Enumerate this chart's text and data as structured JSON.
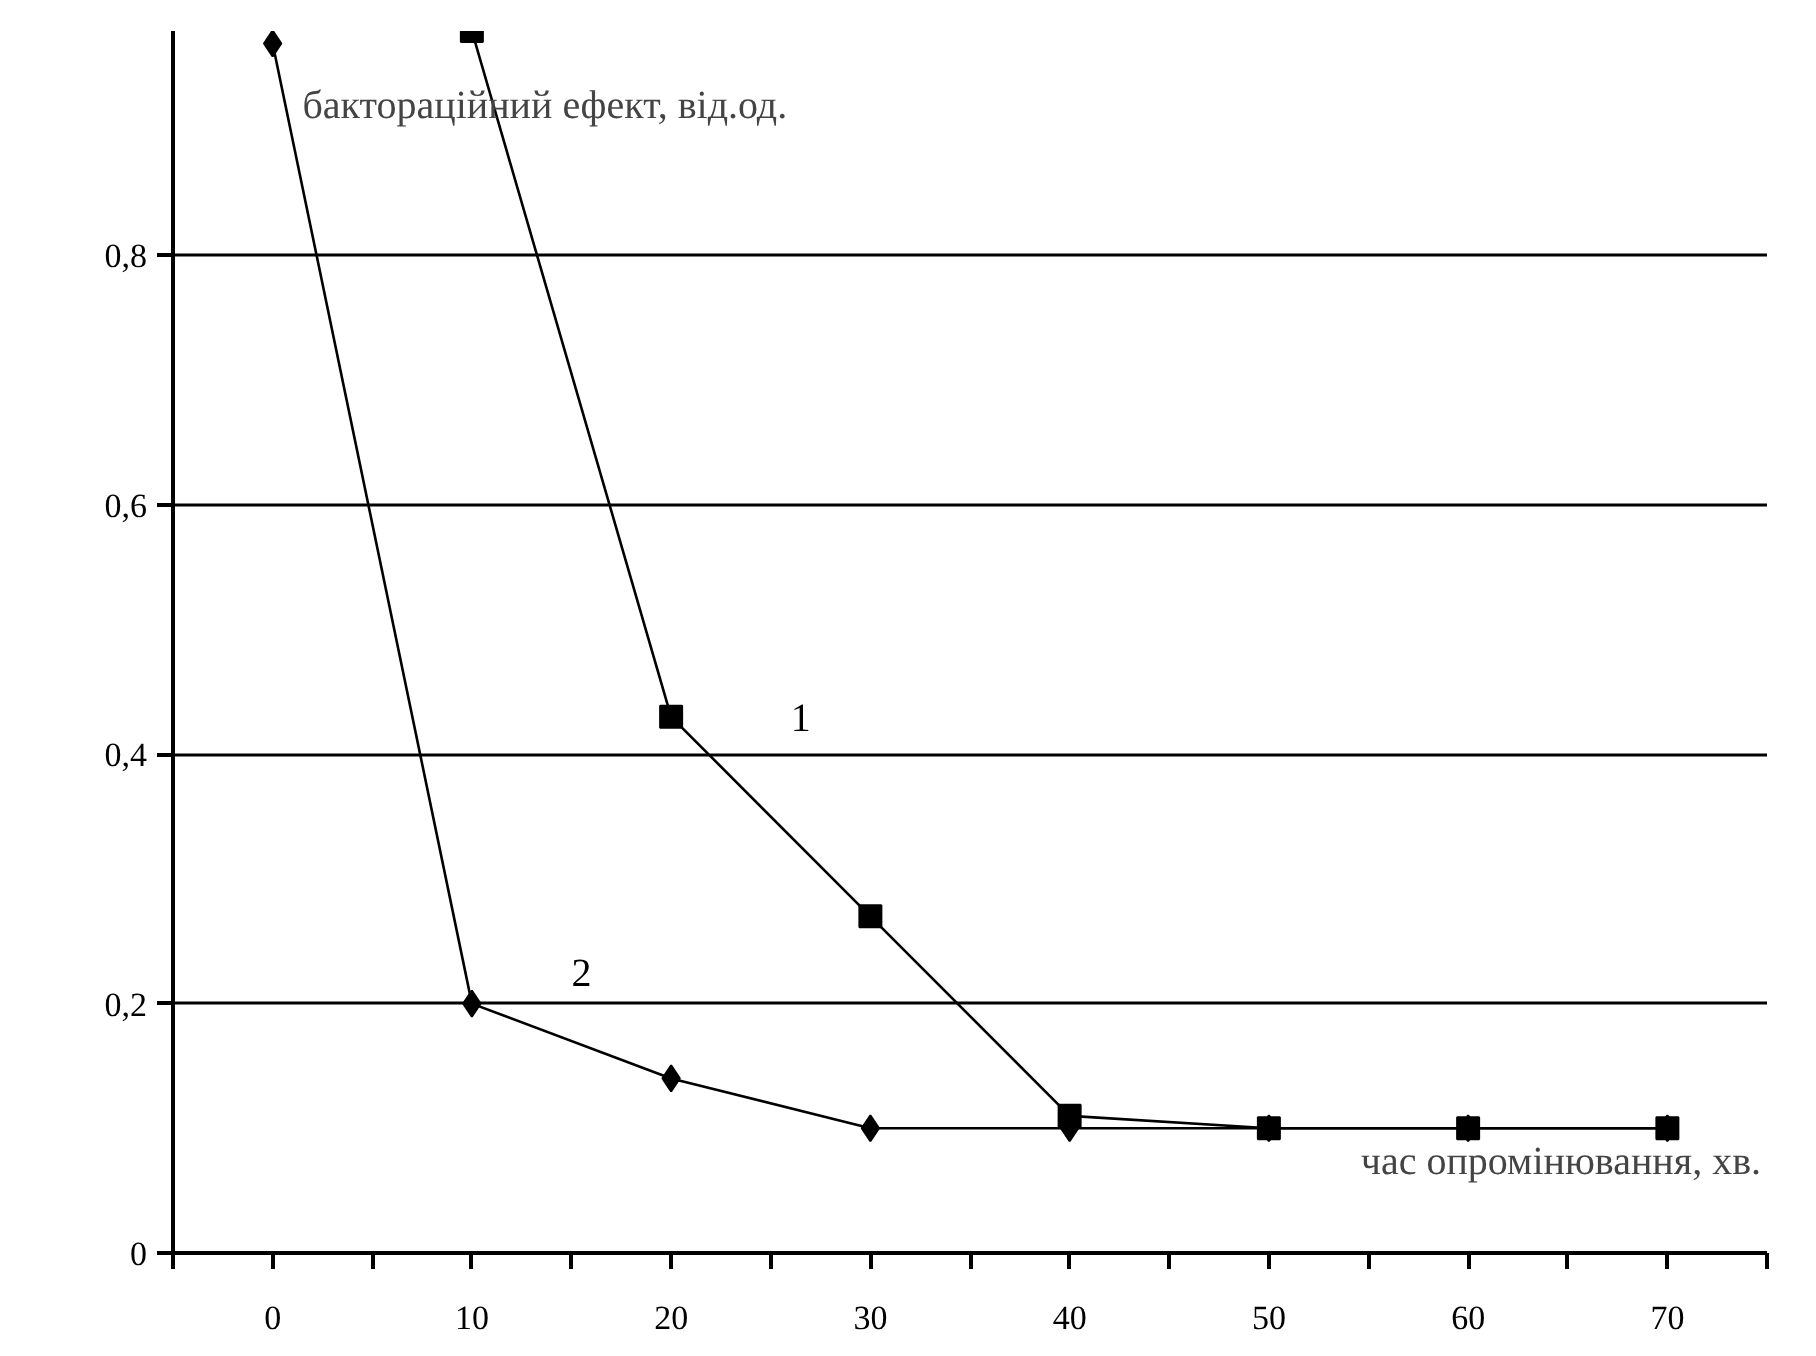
{
  "chart_data": {
    "type": "line",
    "xlabel": "час опромінювання, хв.",
    "ylabel": "бактораційний ефект, від.од.",
    "xlim": [
      -5,
      75
    ],
    "ylim": [
      0,
      0.98
    ],
    "xticks": [
      {
        "value": -5,
        "label": null
      },
      0,
      {
        "value": 5,
        "label": null
      },
      10,
      {
        "value": 15,
        "label": null
      },
      20,
      {
        "value": 25,
        "label": null
      },
      30,
      {
        "value": 35,
        "label": null
      },
      40,
      {
        "value": 45,
        "label": null
      },
      50,
      {
        "value": 55,
        "label": null
      },
      60,
      {
        "value": 65,
        "label": null
      },
      70,
      {
        "value": 75,
        "label": null
      }
    ],
    "yticks": [
      0,
      {
        "value": 0.2,
        "label": "0,2"
      },
      {
        "value": 0.4,
        "label": "0,4"
      },
      {
        "value": 0.6,
        "label": "0,6"
      },
      {
        "value": 0.8,
        "label": "0,8"
      }
    ],
    "grid": "y",
    "line_style": "solid",
    "series": [
      {
        "name": "1",
        "color": "#000000",
        "marker": "square",
        "x": [
          10,
          20,
          30,
          40,
          50,
          60,
          70
        ],
        "values": [
          0.98,
          0.43,
          0.27,
          0.11,
          0.1,
          0.1,
          0.1
        ]
      },
      {
        "name": "2",
        "color": "#000000",
        "marker": "diamond",
        "x": [
          0,
          10,
          20,
          30,
          40,
          50,
          60,
          70
        ],
        "values": [
          0.97,
          0.2,
          0.14,
          0.1,
          0.1,
          0.1,
          0.1,
          0.1
        ]
      }
    ]
  }
}
